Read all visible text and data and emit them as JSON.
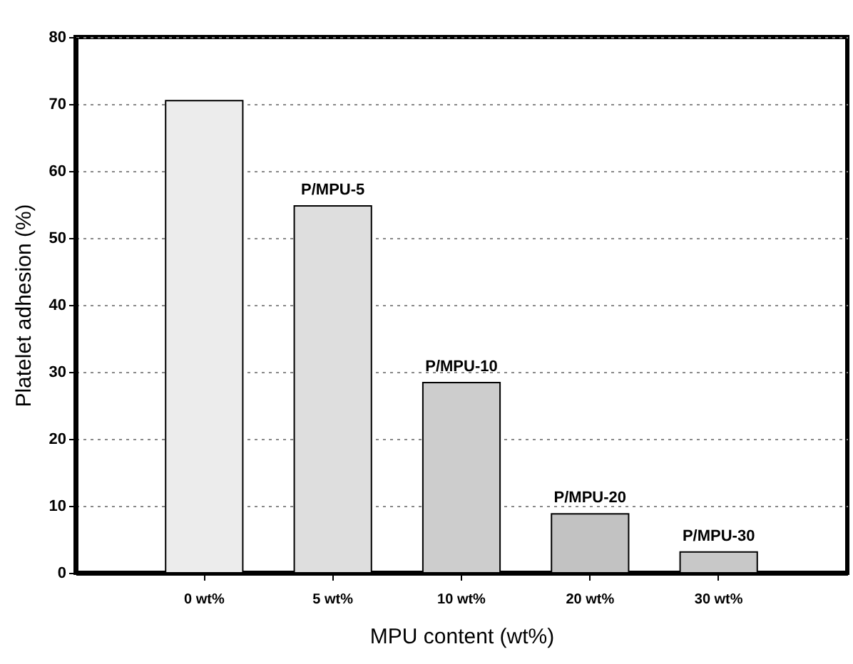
{
  "chart_data": {
    "type": "bar",
    "xlabel": "MPU content (wt%)",
    "ylabel": "Platelet adhesion (%)",
    "categories": [
      "0 wt%",
      "5 wt%",
      "10 wt%",
      "20 wt%",
      "30 wt%"
    ],
    "values": [
      70.5,
      54.8,
      28.4,
      8.8,
      3.1
    ],
    "colors": [
      "#ececec",
      "#dedede",
      "#cdcdcd",
      "#c2c2c2",
      "#c8c8c8"
    ],
    "ylim": [
      0,
      80
    ],
    "yticks": [
      0,
      10,
      20,
      30,
      40,
      50,
      60,
      70,
      80
    ],
    "grid": "y",
    "annotations": [
      {
        "text": "P/MPU-5",
        "x": "5 wt%",
        "y": 54.8
      },
      {
        "text": "P/MPU-10",
        "x": "10 wt%",
        "y": 28.4
      },
      {
        "text": "P/MPU-20",
        "x": "20 wt%",
        "y": 8.8
      },
      {
        "text": "P/MPU-30",
        "x": "30 wt%",
        "y": 3.1
      }
    ]
  }
}
